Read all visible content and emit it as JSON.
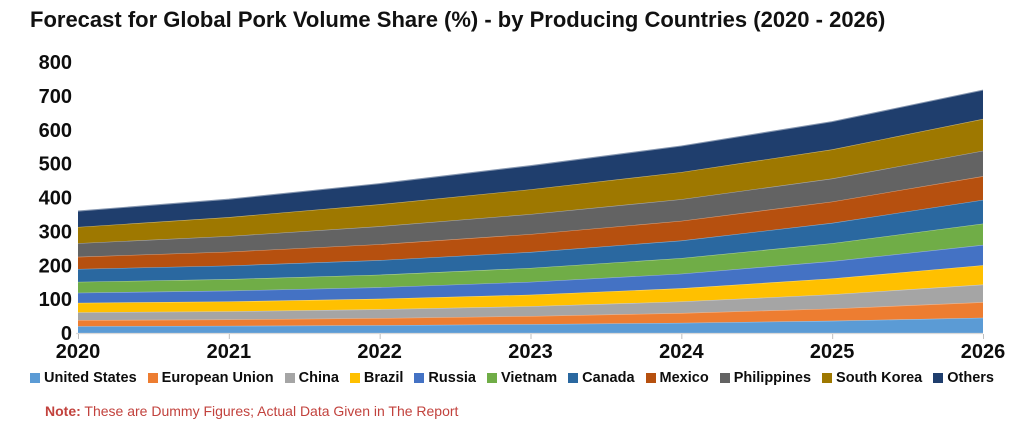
{
  "title": "Forecast for Global Pork Volume Share (%) - by Producing Countries (2020 - 2026)",
  "note": {
    "label": "Note:",
    "text": " These are Dummy Figures; Actual Data Given in The Report",
    "color": "#C2423D"
  },
  "chart_data": {
    "type": "area",
    "stacked": true,
    "title": "Forecast for Global Pork Volume Share (%) - by Producing Countries (2020 - 2026)",
    "xlabel": "",
    "ylabel": "",
    "x": [
      2020,
      2021,
      2022,
      2023,
      2024,
      2025,
      2026
    ],
    "x_tick_labels": [
      "2020",
      "2021",
      "2022",
      "2023",
      "2024",
      "2025",
      "2026"
    ],
    "ylim": [
      0,
      800
    ],
    "y_ticks": [
      0,
      100,
      200,
      300,
      400,
      500,
      600,
      700,
      800
    ],
    "grid": false,
    "legend_position": "bottom",
    "approx_stack_totals": [
      360,
      395,
      441,
      494,
      552,
      624,
      717
    ],
    "series": [
      {
        "name": "United States",
        "color": "#5B9BD5",
        "values": [
          20,
          21,
          23,
          26,
          30,
          36,
          45
        ]
      },
      {
        "name": "European Union",
        "color": "#ED7D31",
        "values": [
          18,
          19,
          21,
          24,
          29,
          36,
          46
        ]
      },
      {
        "name": "China",
        "color": "#A5A5A5",
        "values": [
          23,
          24,
          26,
          29,
          34,
          42,
          52
        ]
      },
      {
        "name": "Brazil",
        "color": "#FFC000",
        "values": [
          28,
          29,
          31,
          34,
          39,
          47,
          57
        ]
      },
      {
        "name": "Russia",
        "color": "#4472C4",
        "values": [
          30,
          32,
          34,
          38,
          43,
          51,
          60
        ]
      },
      {
        "name": "Vietnam",
        "color": "#70AD47",
        "values": [
          32,
          34,
          37,
          41,
          46,
          53,
          63
        ]
      },
      {
        "name": "Canada",
        "color": "#2A68A0",
        "values": [
          38,
          40,
          43,
          47,
          52,
          60,
          70
        ]
      },
      {
        "name": "Mexico",
        "color": "#B6500F",
        "values": [
          36,
          41,
          47,
          53,
          58,
          63,
          70
        ]
      },
      {
        "name": "Philippines",
        "color": "#636363",
        "values": [
          40,
          46,
          53,
          59,
          64,
          68,
          75
        ]
      },
      {
        "name": "South Korea",
        "color": "#9E7800",
        "values": [
          48,
          56,
          65,
          73,
          80,
          86,
          94
        ]
      },
      {
        "name": "Others",
        "color": "#1F3E6D",
        "values": [
          47,
          53,
          61,
          70,
          77,
          82,
          85
        ]
      }
    ],
    "axis_line_color": "#D9D9D9",
    "tick_mark_color": "#BFBFBF",
    "text_color": "#0d0d0d"
  }
}
